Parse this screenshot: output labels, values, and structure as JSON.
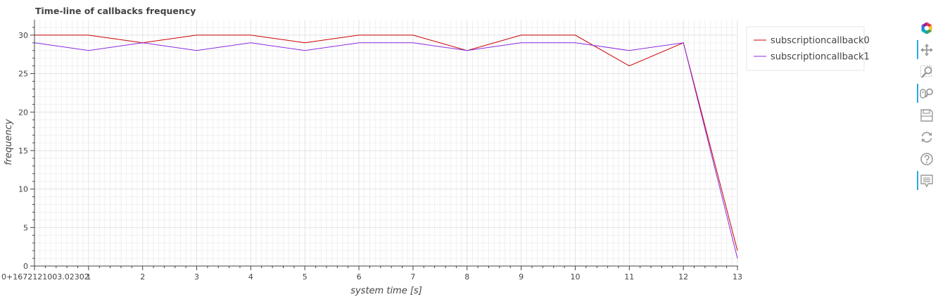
{
  "chart_data": {
    "type": "line",
    "title": "Time-line of callbacks frequency",
    "xlabel": "system time [s]",
    "ylabel": "frequency",
    "xlim": [
      0,
      13
    ],
    "ylim": [
      0,
      32
    ],
    "x_ticks": [
      0,
      1,
      2,
      3,
      4,
      5,
      6,
      7,
      8,
      9,
      10,
      11,
      12,
      13
    ],
    "x_tick_labels": [
      "0+1672121003.02302",
      "1",
      "2",
      "3",
      "4",
      "5",
      "6",
      "7",
      "8",
      "9",
      "10",
      "11",
      "12",
      "13"
    ],
    "y_ticks": [
      0,
      5,
      10,
      15,
      20,
      25,
      30
    ],
    "y_tick_labels": [
      "0",
      "5",
      "10",
      "15",
      "20",
      "25",
      "30"
    ],
    "grid": true,
    "legend_position": "top-right-outside",
    "series": [
      {
        "name": "subscriptioncallback0",
        "color": "#cc0000",
        "x": [
          0,
          1,
          2,
          3,
          4,
          5,
          6,
          7,
          8,
          9,
          10,
          11,
          12,
          13
        ],
        "values": [
          30,
          30,
          29,
          30,
          30,
          29,
          30,
          30,
          28,
          30,
          30,
          26,
          29,
          2
        ]
      },
      {
        "name": "subscriptioncallback1",
        "color": "#8a2be2",
        "x": [
          0,
          1,
          2,
          3,
          4,
          5,
          6,
          7,
          8,
          9,
          10,
          11,
          12,
          13
        ],
        "values": [
          29,
          28,
          29,
          28,
          29,
          28,
          29,
          29,
          28,
          29,
          29,
          28,
          29,
          1
        ]
      }
    ]
  },
  "toolbar": {
    "tools": [
      {
        "name": "bokeh-logo-icon",
        "active": false,
        "clickable": true
      },
      {
        "name": "pan-icon",
        "active": true,
        "clickable": true
      },
      {
        "name": "box-zoom-icon",
        "active": false,
        "clickable": true
      },
      {
        "name": "wheel-zoom-icon",
        "active": true,
        "clickable": true
      },
      {
        "name": "save-icon",
        "active": false,
        "clickable": true
      },
      {
        "name": "reset-icon",
        "active": false,
        "clickable": true
      },
      {
        "name": "help-icon",
        "active": false,
        "clickable": true
      },
      {
        "name": "hover-icon",
        "active": true,
        "clickable": true
      }
    ]
  }
}
